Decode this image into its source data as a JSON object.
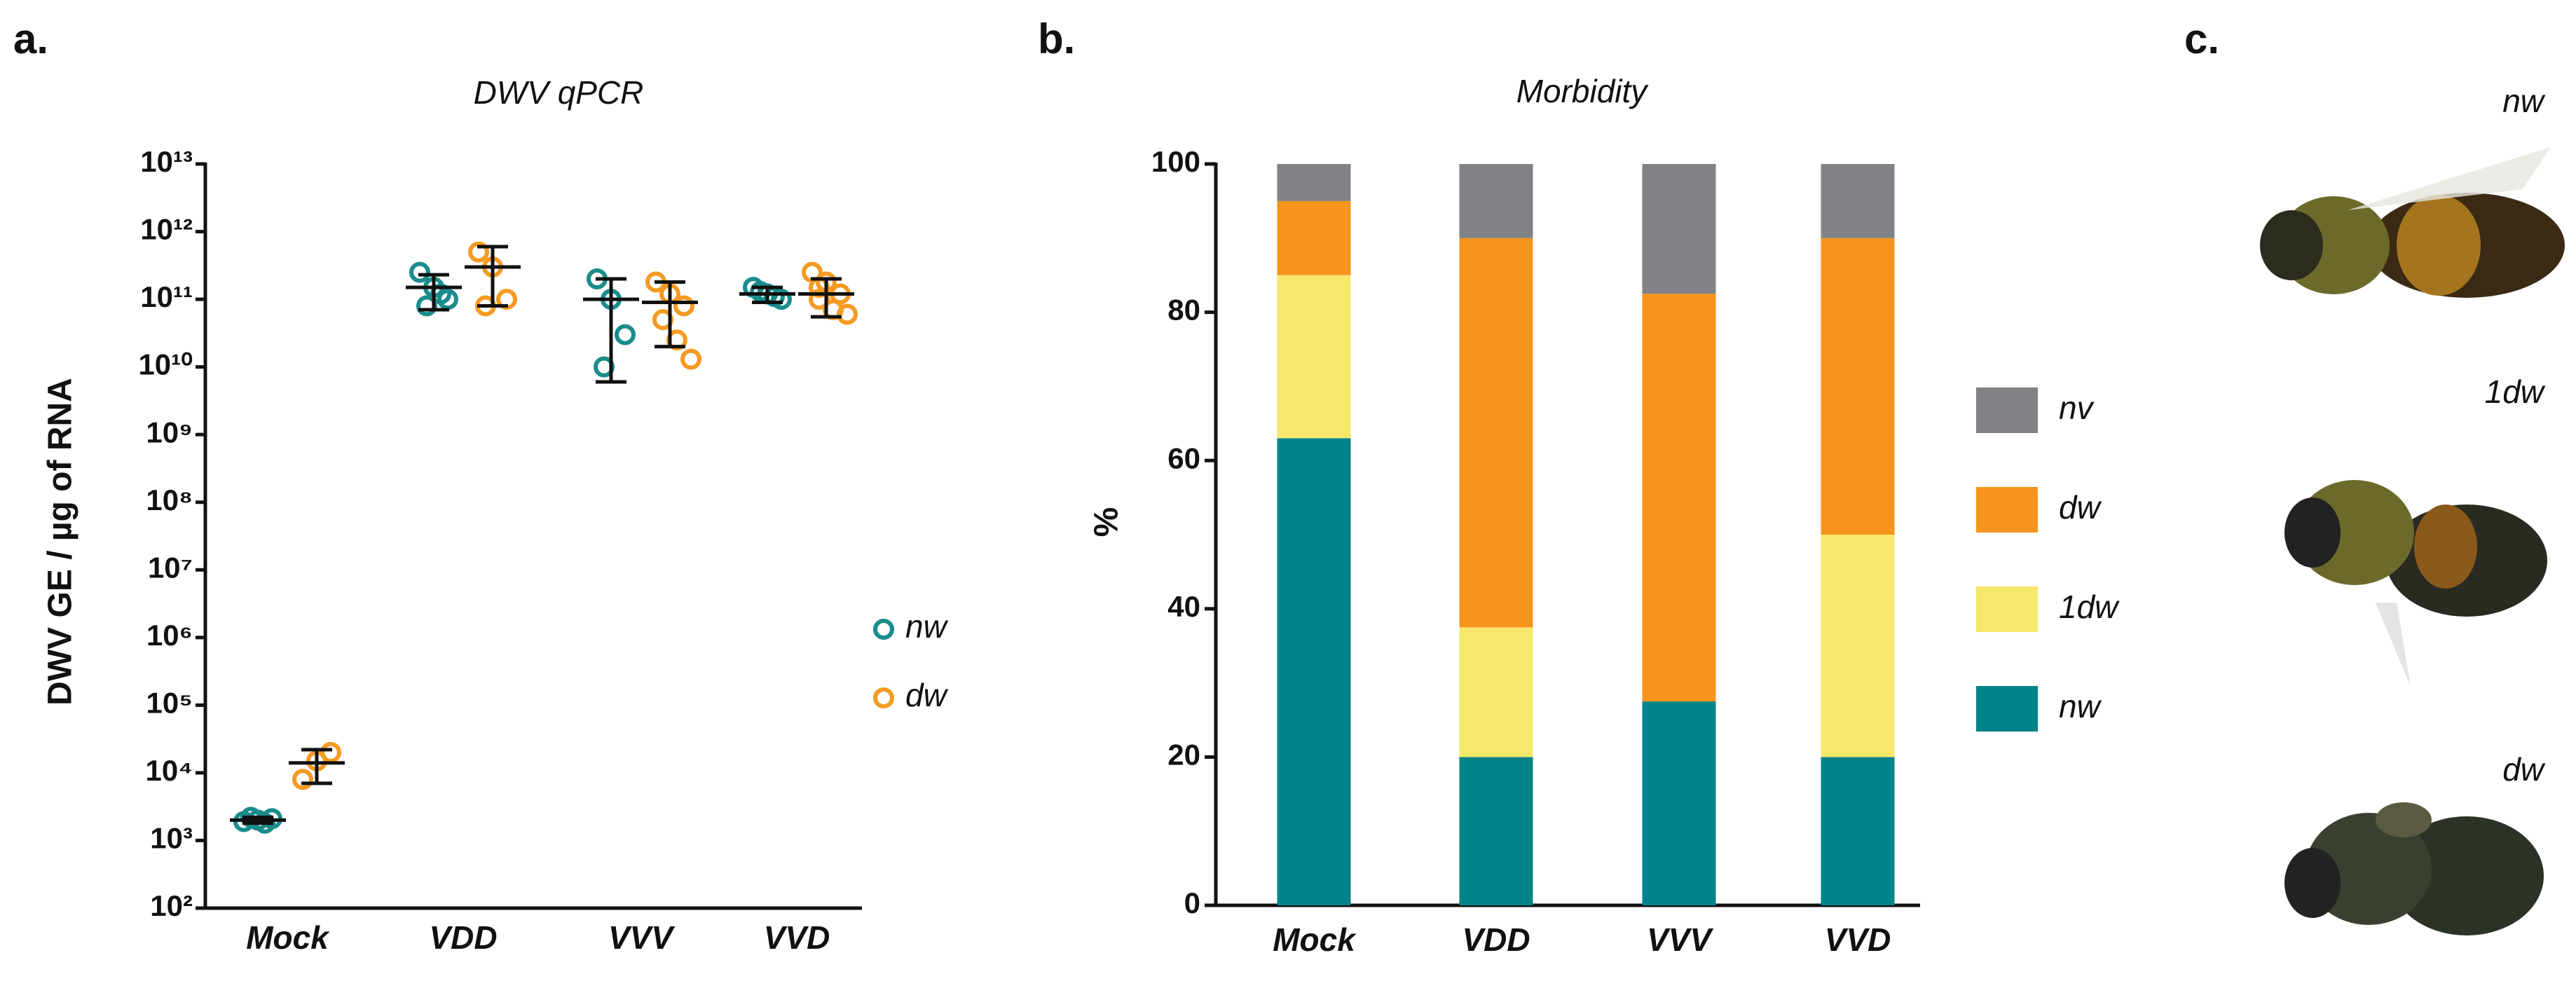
{
  "chart_data": [
    {
      "type": "scatter",
      "panel_label": "a.",
      "title": "DWV qPCR",
      "y_label": "DWV GE / µg of RNA",
      "log_y": true,
      "categories": [
        "Mock",
        "VDD",
        "VVV",
        "VVD"
      ],
      "ylim": [
        100,
        10000000000000
      ],
      "yticks": [
        {
          "value": 100,
          "label": "10²"
        },
        {
          "value": 1000,
          "label": "10³"
        },
        {
          "value": 10000,
          "label": "10⁴"
        },
        {
          "value": 100000,
          "label": "10⁵"
        },
        {
          "value": 1000000,
          "label": "10⁶"
        },
        {
          "value": 10000000,
          "label": "10⁷"
        },
        {
          "value": 100000000,
          "label": "10⁸"
        },
        {
          "value": 1000000000,
          "label": "10⁹"
        },
        {
          "value": 10000000000,
          "label": "10¹⁰"
        },
        {
          "value": 100000000000,
          "label": "10¹¹"
        },
        {
          "value": 1000000000000,
          "label": "10¹²"
        },
        {
          "value": 10000000000000,
          "label": "10¹³"
        }
      ],
      "series": [
        {
          "name": "nw",
          "color": "#1a8c8c",
          "points": [
            [
              1900,
              2000,
              2100,
              2200,
              1800
            ],
            [
              250000000000,
              150000000000,
              100000000000,
              80000000000,
              120000000000
            ],
            [
              200000000000,
              100000000000,
              30000000000,
              10000000000
            ],
            [
              150000000000,
              120000000000,
              100000000000,
              130000000000,
              110000000000
            ]
          ],
          "mean": [
            2000,
            150000000000,
            100000000000,
            120000000000
          ],
          "err_low": [
            1800,
            70000000000,
            6000000000,
            90000000000
          ],
          "err_high": [
            2200,
            230000000000,
            200000000000,
            150000000000
          ]
        },
        {
          "name": "dw",
          "color": "#f59a23",
          "points": [
            [
              8000,
              15000,
              20000
            ],
            [
              500000000000,
              300000000000,
              100000000000,
              80000000000
            ],
            [
              180000000000,
              120000000000,
              80000000000,
              50000000000,
              25000000000,
              13000000000
            ],
            [
              250000000000,
              180000000000,
              120000000000,
              100000000000,
              70000000000,
              60000000000,
              150000000000
            ]
          ],
          "mean": [
            14000,
            300000000000,
            90000000000,
            120000000000
          ],
          "err_low": [
            7000,
            80000000000,
            20000000000,
            55000000000
          ],
          "err_high": [
            22000,
            600000000000,
            180000000000,
            200000000000
          ]
        }
      ]
    },
    {
      "type": "bar",
      "stacked": true,
      "panel_label": "b.",
      "title": "Morbidity",
      "y_label": "%",
      "categories": [
        "Mock",
        "VDD",
        "VVV",
        "VVD"
      ],
      "ylim": [
        0,
        100
      ],
      "yticks": [
        0,
        20,
        40,
        60,
        80,
        100
      ],
      "series": [
        {
          "name": "nw",
          "color": "#00848a",
          "values": [
            63,
            20,
            27.5,
            20
          ]
        },
        {
          "name": "1dw",
          "color": "#f6e86b",
          "values": [
            22,
            17.5,
            0,
            30
          ]
        },
        {
          "name": "dw",
          "color": "#f7941d",
          "values": [
            10,
            52.5,
            55,
            40
          ]
        },
        {
          "name": "nv",
          "color": "#808285",
          "values": [
            5,
            10,
            17.5,
            10
          ]
        }
      ]
    }
  ],
  "panel_c": {
    "panel_label": "c.",
    "images": [
      {
        "label": "nw"
      },
      {
        "label": "1dw"
      },
      {
        "label": "dw"
      }
    ]
  }
}
